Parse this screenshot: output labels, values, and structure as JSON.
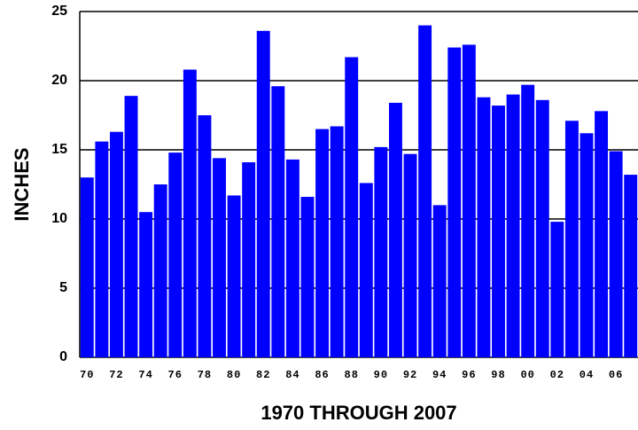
{
  "chart_data": {
    "type": "bar",
    "x_label": "1970  THROUGH  2007",
    "y_label": "INCHES",
    "categories": [
      "70",
      null,
      "72",
      null,
      "74",
      null,
      "76",
      null,
      "78",
      null,
      "80",
      null,
      "82",
      null,
      "84",
      null,
      "86",
      null,
      "88",
      null,
      "90",
      null,
      "92",
      null,
      "94",
      null,
      "96",
      null,
      "98",
      null,
      "00",
      null,
      "02",
      null,
      "04",
      null,
      "06",
      null
    ],
    "values": [
      13.0,
      15.6,
      16.3,
      18.9,
      10.5,
      12.5,
      14.8,
      20.8,
      17.5,
      14.4,
      11.7,
      14.1,
      23.6,
      19.6,
      14.3,
      11.6,
      16.5,
      16.7,
      21.7,
      12.6,
      15.2,
      18.4,
      14.7,
      24.0,
      11.0,
      22.4,
      22.6,
      18.8,
      18.2,
      19.0,
      19.7,
      18.6,
      9.8,
      17.1,
      16.2,
      17.8,
      14.9,
      13.2
    ],
    "color": "#0000ff",
    "ylim": [
      0,
      25
    ],
    "yticks": [
      0,
      5,
      10,
      15,
      20,
      25
    ],
    "grid": true
  }
}
